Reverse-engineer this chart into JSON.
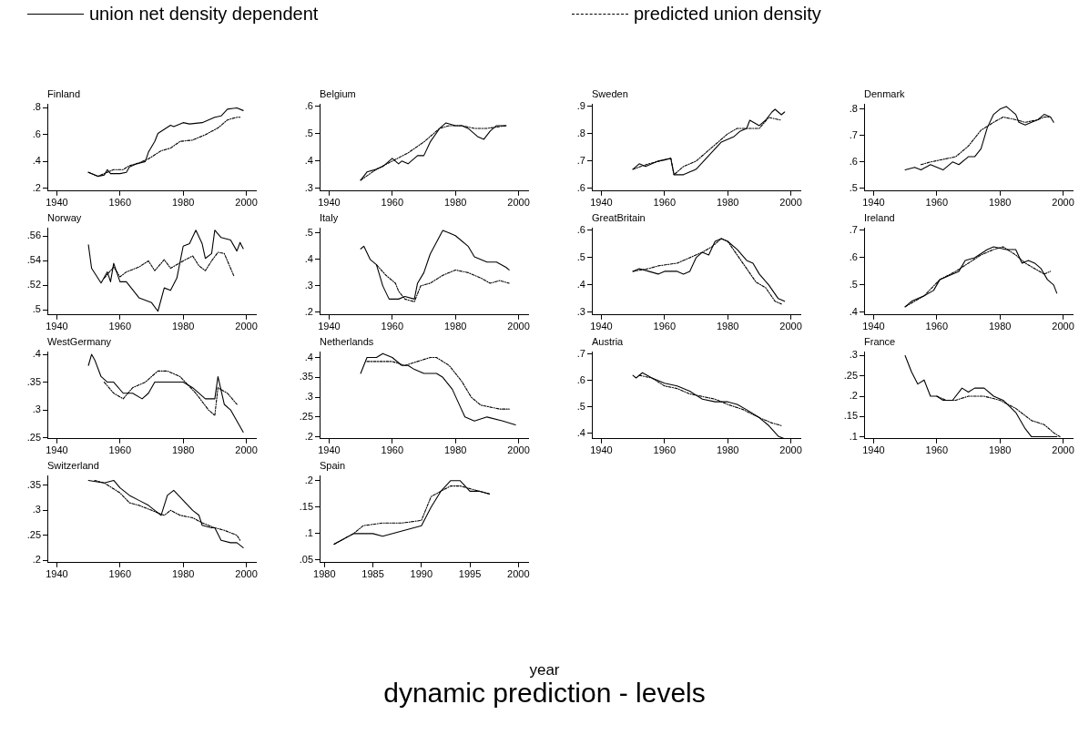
{
  "chart_data": [
    {
      "type": "line",
      "title": "Finland",
      "legend": "top",
      "annotations": [
        "year",
        "dynamic prediction - levels"
      ],
      "xlim": [
        1937,
        2003
      ],
      "xticks": [
        1940,
        1960,
        1980,
        2000
      ],
      "ylim": [
        0.18,
        0.83
      ],
      "yticks": [
        {
          "value": 0.2,
          "label": ".2"
        },
        {
          "value": 0.4,
          "label": ".4"
        },
        {
          "value": 0.6,
          "label": ".6"
        },
        {
          "value": 0.8,
          "label": ".8"
        }
      ],
      "series": [
        {
          "name": "union net density dependent",
          "color": "#000000",
          "line_style": "solid",
          "x": [
            1950,
            1953,
            1955,
            1956,
            1957,
            1960,
            1962,
            1963,
            1965,
            1968,
            1969,
            1971,
            1972,
            1976,
            1977,
            1980,
            1982,
            1986,
            1990,
            1992,
            1994,
            1997,
            1999
          ],
          "values": [
            0.32,
            0.29,
            0.3,
            0.34,
            0.31,
            0.31,
            0.32,
            0.36,
            0.38,
            0.4,
            0.47,
            0.55,
            0.61,
            0.67,
            0.66,
            0.69,
            0.68,
            0.69,
            0.73,
            0.74,
            0.79,
            0.8,
            0.78
          ]
        },
        {
          "name": "predicted union density",
          "color": "#000000",
          "line_style": "dashed",
          "x": [
            1950,
            1953,
            1955,
            1958,
            1961,
            1963,
            1966,
            1969,
            1973,
            1976,
            1979,
            1983,
            1987,
            1991,
            1994,
            1997,
            1998
          ],
          "values": [
            0.32,
            0.29,
            0.31,
            0.34,
            0.34,
            0.37,
            0.39,
            0.42,
            0.48,
            0.5,
            0.55,
            0.56,
            0.6,
            0.65,
            0.71,
            0.73,
            0.73
          ]
        }
      ]
    },
    {
      "type": "line",
      "title": "Belgium",
      "xlim": [
        1937,
        2003
      ],
      "xticks": [
        1940,
        1960,
        1980,
        2000
      ],
      "ylim": [
        0.29,
        0.61
      ],
      "yticks": [
        {
          "value": 0.3,
          "label": ".3"
        },
        {
          "value": 0.4,
          "label": ".4"
        },
        {
          "value": 0.5,
          "label": ".5"
        },
        {
          "value": 0.6,
          "label": ".6"
        }
      ],
      "series": [
        {
          "color": "#000000",
          "line_style": "solid",
          "x": [
            1950,
            1952,
            1955,
            1957,
            1960,
            1962,
            1963,
            1965,
            1968,
            1970,
            1972,
            1975,
            1977,
            1980,
            1982,
            1984,
            1987,
            1989,
            1991,
            1993,
            1996
          ],
          "values": [
            0.33,
            0.36,
            0.37,
            0.38,
            0.41,
            0.39,
            0.4,
            0.39,
            0.42,
            0.42,
            0.47,
            0.52,
            0.54,
            0.53,
            0.53,
            0.52,
            0.49,
            0.48,
            0.51,
            0.53,
            0.53
          ]
        },
        {
          "color": "#000000",
          "line_style": "dashed",
          "x": [
            1950,
            1955,
            1960,
            1965,
            1970,
            1975,
            1978,
            1982,
            1986,
            1990,
            1996
          ],
          "values": [
            0.33,
            0.37,
            0.4,
            0.43,
            0.47,
            0.52,
            0.53,
            0.53,
            0.52,
            0.52,
            0.53
          ]
        }
      ]
    },
    {
      "type": "line",
      "title": "Sweden",
      "xlim": [
        1937,
        2003
      ],
      "xticks": [
        1940,
        1960,
        1980,
        2000
      ],
      "ylim": [
        0.59,
        0.91
      ],
      "yticks": [
        {
          "value": 0.6,
          "label": ".6"
        },
        {
          "value": 0.7,
          "label": ".7"
        },
        {
          "value": 0.8,
          "label": ".8"
        },
        {
          "value": 0.9,
          "label": ".9"
        }
      ],
      "series": [
        {
          "color": "#000000",
          "line_style": "solid",
          "x": [
            1950,
            1952,
            1954,
            1956,
            1958,
            1962,
            1963,
            1966,
            1968,
            1970,
            1974,
            1978,
            1982,
            1984,
            1986,
            1987,
            1990,
            1992,
            1994,
            1995,
            1997,
            1998
          ],
          "values": [
            0.67,
            0.69,
            0.68,
            0.69,
            0.7,
            0.71,
            0.65,
            0.65,
            0.66,
            0.67,
            0.72,
            0.77,
            0.79,
            0.81,
            0.82,
            0.85,
            0.83,
            0.85,
            0.88,
            0.89,
            0.87,
            0.88
          ]
        },
        {
          "color": "#000000",
          "line_style": "dashed",
          "x": [
            1950,
            1955,
            1962,
            1963,
            1966,
            1970,
            1975,
            1980,
            1983,
            1986,
            1990,
            1993,
            1997
          ],
          "values": [
            0.67,
            0.69,
            0.71,
            0.65,
            0.68,
            0.7,
            0.75,
            0.8,
            0.82,
            0.82,
            0.82,
            0.86,
            0.85
          ]
        }
      ]
    },
    {
      "type": "line",
      "title": "Denmark",
      "xlim": [
        1937,
        2003
      ],
      "xticks": [
        1940,
        1960,
        1980,
        2000
      ],
      "ylim": [
        0.49,
        0.82
      ],
      "yticks": [
        {
          "value": 0.5,
          "label": ".5"
        },
        {
          "value": 0.6,
          "label": ".6"
        },
        {
          "value": 0.7,
          "label": ".7"
        },
        {
          "value": 0.8,
          "label": ".8"
        }
      ],
      "series": [
        {
          "color": "#000000",
          "line_style": "solid",
          "x": [
            1950,
            1953,
            1955,
            1958,
            1962,
            1965,
            1967,
            1970,
            1972,
            1974,
            1976,
            1978,
            1980,
            1982,
            1985,
            1986,
            1988,
            1990,
            1992,
            1994,
            1996,
            1997
          ],
          "values": [
            0.57,
            0.58,
            0.57,
            0.59,
            0.57,
            0.6,
            0.59,
            0.62,
            0.62,
            0.65,
            0.73,
            0.78,
            0.8,
            0.81,
            0.78,
            0.75,
            0.74,
            0.75,
            0.76,
            0.78,
            0.77,
            0.75
          ]
        },
        {
          "color": "#000000",
          "line_style": "dashed",
          "x": [
            1955,
            1958,
            1962,
            1966,
            1970,
            1974,
            1978,
            1981,
            1985,
            1988,
            1992,
            1994,
            1996
          ],
          "values": [
            0.59,
            0.6,
            0.61,
            0.62,
            0.66,
            0.72,
            0.75,
            0.77,
            0.76,
            0.75,
            0.76,
            0.77,
            0.77
          ]
        }
      ]
    },
    {
      "type": "line",
      "title": "Norway",
      "xlim": [
        1937,
        2003
      ],
      "xticks": [
        1940,
        1960,
        1980,
        2000
      ],
      "ylim": [
        0.496,
        0.567
      ],
      "yticks": [
        {
          "value": 0.5,
          "label": ".5"
        },
        {
          "value": 0.52,
          "label": ".52"
        },
        {
          "value": 0.54,
          "label": ".54"
        },
        {
          "value": 0.56,
          "label": ".56"
        }
      ],
      "series": [
        {
          "color": "#000000",
          "line_style": "solid",
          "x": [
            1950,
            1951,
            1954,
            1956,
            1957,
            1958,
            1960,
            1962,
            1966,
            1970,
            1972,
            1974,
            1976,
            1978,
            1980,
            1982,
            1984,
            1986,
            1987,
            1989,
            1990,
            1992,
            1995,
            1997,
            1998,
            1999
          ],
          "values": [
            0.553,
            0.534,
            0.522,
            0.531,
            0.523,
            0.538,
            0.523,
            0.523,
            0.51,
            0.506,
            0.499,
            0.518,
            0.516,
            0.526,
            0.552,
            0.554,
            0.565,
            0.554,
            0.542,
            0.546,
            0.565,
            0.559,
            0.557,
            0.548,
            0.555,
            0.55
          ]
        },
        {
          "color": "#000000",
          "line_style": "dashed",
          "x": [
            1955,
            1958,
            1960,
            1962,
            1966,
            1969,
            1971,
            1974,
            1976,
            1980,
            1983,
            1985,
            1987,
            1989,
            1991,
            1993,
            1996
          ],
          "values": [
            0.526,
            0.535,
            0.527,
            0.531,
            0.535,
            0.54,
            0.532,
            0.541,
            0.534,
            0.54,
            0.544,
            0.536,
            0.532,
            0.54,
            0.547,
            0.546,
            0.528
          ]
        }
      ]
    },
    {
      "type": "line",
      "title": "Italy",
      "xlim": [
        1937,
        2003
      ],
      "xticks": [
        1940,
        1960,
        1980,
        2000
      ],
      "ylim": [
        0.19,
        0.52
      ],
      "yticks": [
        {
          "value": 0.2,
          "label": ".2"
        },
        {
          "value": 0.3,
          "label": ".3"
        },
        {
          "value": 0.4,
          "label": ".4"
        },
        {
          "value": 0.5,
          "label": ".5"
        }
      ],
      "series": [
        {
          "color": "#000000",
          "line_style": "solid",
          "x": [
            1950,
            1951,
            1953,
            1955,
            1957,
            1959,
            1962,
            1964,
            1967,
            1968,
            1970,
            1972,
            1976,
            1978,
            1980,
            1984,
            1986,
            1990,
            1993,
            1996,
            1997
          ],
          "values": [
            0.44,
            0.45,
            0.4,
            0.38,
            0.3,
            0.25,
            0.25,
            0.26,
            0.25,
            0.31,
            0.35,
            0.42,
            0.51,
            0.5,
            0.49,
            0.45,
            0.41,
            0.39,
            0.39,
            0.37,
            0.36
          ]
        },
        {
          "color": "#000000",
          "line_style": "dashed",
          "x": [
            1955,
            1958,
            1961,
            1962,
            1964,
            1967,
            1969,
            1972,
            1976,
            1980,
            1984,
            1988,
            1991,
            1994,
            1997
          ],
          "values": [
            0.38,
            0.34,
            0.31,
            0.28,
            0.25,
            0.24,
            0.3,
            0.31,
            0.34,
            0.36,
            0.35,
            0.33,
            0.31,
            0.32,
            0.31
          ]
        }
      ]
    },
    {
      "type": "line",
      "title": "GreatBritain",
      "xlim": [
        1937,
        2003
      ],
      "xticks": [
        1940,
        1960,
        1980,
        2000
      ],
      "ylim": [
        0.29,
        0.61
      ],
      "yticks": [
        {
          "value": 0.3,
          "label": ".3"
        },
        {
          "value": 0.4,
          "label": ".4"
        },
        {
          "value": 0.5,
          "label": ".5"
        },
        {
          "value": 0.6,
          "label": ".6"
        }
      ],
      "series": [
        {
          "color": "#000000",
          "line_style": "solid",
          "x": [
            1950,
            1952,
            1955,
            1958,
            1960,
            1964,
            1966,
            1968,
            1970,
            1972,
            1974,
            1976,
            1978,
            1980,
            1983,
            1986,
            1988,
            1990,
            1993,
            1996,
            1998
          ],
          "values": [
            0.45,
            0.46,
            0.45,
            0.44,
            0.45,
            0.45,
            0.44,
            0.45,
            0.5,
            0.52,
            0.51,
            0.56,
            0.57,
            0.56,
            0.53,
            0.49,
            0.48,
            0.44,
            0.4,
            0.35,
            0.34
          ]
        },
        {
          "color": "#000000",
          "line_style": "dashed",
          "x": [
            1950,
            1955,
            1958,
            1964,
            1968,
            1972,
            1975,
            1978,
            1980,
            1983,
            1986,
            1989,
            1992,
            1995,
            1997
          ],
          "values": [
            0.45,
            0.46,
            0.47,
            0.48,
            0.5,
            0.52,
            0.54,
            0.57,
            0.56,
            0.51,
            0.46,
            0.41,
            0.39,
            0.34,
            0.33
          ]
        }
      ]
    },
    {
      "type": "line",
      "title": "Ireland",
      "xlim": [
        1937,
        2003
      ],
      "xticks": [
        1940,
        1960,
        1980,
        2000
      ],
      "ylim": [
        0.39,
        0.71
      ],
      "yticks": [
        {
          "value": 0.4,
          "label": ".4"
        },
        {
          "value": 0.5,
          "label": ".5"
        },
        {
          "value": 0.6,
          "label": ".6"
        },
        {
          "value": 0.7,
          "label": ".7"
        }
      ],
      "series": [
        {
          "color": "#000000",
          "line_style": "solid",
          "x": [
            1950,
            1952,
            1956,
            1959,
            1961,
            1963,
            1967,
            1969,
            1972,
            1976,
            1978,
            1982,
            1985,
            1987,
            1989,
            1991,
            1993,
            1995,
            1997,
            1998
          ],
          "values": [
            0.42,
            0.44,
            0.46,
            0.48,
            0.52,
            0.53,
            0.55,
            0.59,
            0.6,
            0.63,
            0.64,
            0.63,
            0.63,
            0.58,
            0.59,
            0.58,
            0.56,
            0.52,
            0.5,
            0.47
          ]
        },
        {
          "color": "#000000",
          "line_style": "dashed",
          "x": [
            1950,
            1956,
            1961,
            1966,
            1970,
            1974,
            1978,
            1981,
            1985,
            1988,
            1991,
            1994,
            1996
          ],
          "values": [
            0.42,
            0.46,
            0.52,
            0.55,
            0.58,
            0.61,
            0.63,
            0.64,
            0.61,
            0.58,
            0.56,
            0.54,
            0.55
          ]
        }
      ]
    },
    {
      "type": "line",
      "title": "WestGermany",
      "xlim": [
        1937,
        2003
      ],
      "xticks": [
        1940,
        1960,
        1980,
        2000
      ],
      "ylim": [
        0.248,
        0.405
      ],
      "yticks": [
        {
          "value": 0.25,
          "label": ".25"
        },
        {
          "value": 0.3,
          "label": ".3"
        },
        {
          "value": 0.35,
          "label": ".35"
        },
        {
          "value": 0.4,
          "label": ".4"
        }
      ],
      "series": [
        {
          "color": "#000000",
          "line_style": "solid",
          "x": [
            1950,
            1951,
            1952,
            1954,
            1956,
            1958,
            1961,
            1964,
            1967,
            1969,
            1971,
            1973,
            1976,
            1980,
            1983,
            1987,
            1990,
            1991,
            1993,
            1995,
            1997,
            1999
          ],
          "values": [
            0.38,
            0.4,
            0.39,
            0.36,
            0.35,
            0.35,
            0.33,
            0.33,
            0.32,
            0.33,
            0.35,
            0.35,
            0.35,
            0.35,
            0.34,
            0.32,
            0.32,
            0.36,
            0.31,
            0.3,
            0.28,
            0.26
          ]
        },
        {
          "color": "#000000",
          "line_style": "dashed",
          "x": [
            1955,
            1958,
            1961,
            1964,
            1968,
            1972,
            1975,
            1979,
            1984,
            1988,
            1990,
            1991,
            1994,
            1997
          ],
          "values": [
            0.35,
            0.33,
            0.32,
            0.34,
            0.35,
            0.37,
            0.37,
            0.36,
            0.33,
            0.3,
            0.29,
            0.34,
            0.33,
            0.31
          ]
        }
      ]
    },
    {
      "type": "line",
      "title": "Netherlands",
      "xlim": [
        1937,
        2003
      ],
      "xticks": [
        1940,
        1960,
        1980,
        2000
      ],
      "ylim": [
        0.195,
        0.415
      ],
      "yticks": [
        {
          "value": 0.2,
          "label": ".2"
        },
        {
          "value": 0.25,
          "label": ".25"
        },
        {
          "value": 0.3,
          "label": ".3"
        },
        {
          "value": 0.35,
          "label": ".35"
        },
        {
          "value": 0.4,
          "label": ".4"
        }
      ],
      "series": [
        {
          "color": "#000000",
          "line_style": "solid",
          "x": [
            1950,
            1952,
            1955,
            1957,
            1960,
            1963,
            1965,
            1967,
            1970,
            1974,
            1976,
            1979,
            1983,
            1986,
            1990,
            1995,
            1999
          ],
          "values": [
            0.36,
            0.4,
            0.4,
            0.41,
            0.4,
            0.38,
            0.38,
            0.37,
            0.36,
            0.36,
            0.35,
            0.32,
            0.25,
            0.24,
            0.25,
            0.24,
            0.23
          ]
        },
        {
          "color": "#000000",
          "line_style": "dashed",
          "x": [
            1952,
            1956,
            1960,
            1964,
            1968,
            1972,
            1974,
            1978,
            1982,
            1985,
            1988,
            1994,
            1997
          ],
          "values": [
            0.39,
            0.39,
            0.39,
            0.38,
            0.39,
            0.4,
            0.4,
            0.38,
            0.34,
            0.3,
            0.28,
            0.27,
            0.27
          ]
        }
      ]
    },
    {
      "type": "line",
      "title": "Austria",
      "xlim": [
        1937,
        2003
      ],
      "xticks": [
        1940,
        1960,
        1980,
        2000
      ],
      "ylim": [
        0.38,
        0.71
      ],
      "yticks": [
        {
          "value": 0.4,
          "label": ".4"
        },
        {
          "value": 0.5,
          "label": ".5"
        },
        {
          "value": 0.6,
          "label": ".6"
        },
        {
          "value": 0.7,
          "label": ".7"
        }
      ],
      "series": [
        {
          "color": "#000000",
          "line_style": "solid",
          "x": [
            1950,
            1951,
            1953,
            1956,
            1960,
            1964,
            1968,
            1972,
            1976,
            1980,
            1983,
            1986,
            1990,
            1993,
            1996,
            1998
          ],
          "values": [
            0.62,
            0.61,
            0.63,
            0.61,
            0.59,
            0.58,
            0.56,
            0.53,
            0.52,
            0.52,
            0.51,
            0.49,
            0.46,
            0.43,
            0.39,
            0.38
          ]
        },
        {
          "color": "#000000",
          "line_style": "dashed",
          "x": [
            1952,
            1956,
            1960,
            1964,
            1968,
            1972,
            1976,
            1980,
            1985,
            1990,
            1994,
            1997
          ],
          "values": [
            0.62,
            0.61,
            0.58,
            0.57,
            0.55,
            0.54,
            0.53,
            0.51,
            0.49,
            0.46,
            0.44,
            0.43
          ]
        }
      ]
    },
    {
      "type": "line",
      "title": "France",
      "xlim": [
        1937,
        2003
      ],
      "xticks": [
        1940,
        1960,
        1980,
        2000
      ],
      "ylim": [
        0.095,
        0.31
      ],
      "yticks": [
        {
          "value": 0.1,
          "label": ".1"
        },
        {
          "value": 0.15,
          "label": ".15"
        },
        {
          "value": 0.2,
          "label": ".2"
        },
        {
          "value": 0.25,
          "label": ".25"
        },
        {
          "value": 0.3,
          "label": ".3"
        }
      ],
      "series": [
        {
          "color": "#000000",
          "line_style": "solid",
          "x": [
            1950,
            1952,
            1954,
            1956,
            1958,
            1960,
            1962,
            1965,
            1968,
            1970,
            1972,
            1975,
            1978,
            1981,
            1985,
            1988,
            1990,
            1994,
            1998
          ],
          "values": [
            0.3,
            0.26,
            0.23,
            0.24,
            0.2,
            0.2,
            0.19,
            0.19,
            0.22,
            0.21,
            0.22,
            0.22,
            0.2,
            0.19,
            0.16,
            0.12,
            0.1,
            0.1,
            0.1
          ]
        },
        {
          "color": "#000000",
          "line_style": "dashed",
          "x": [
            1960,
            1963,
            1966,
            1970,
            1975,
            1980,
            1985,
            1990,
            1994,
            1997,
            1999
          ],
          "values": [
            0.2,
            0.19,
            0.19,
            0.2,
            0.2,
            0.19,
            0.17,
            0.14,
            0.13,
            0.11,
            0.1
          ]
        }
      ]
    },
    {
      "type": "line",
      "title": "Switzerland",
      "xlim": [
        1937,
        2003
      ],
      "xticks": [
        1940,
        1960,
        1980,
        2000
      ],
      "ylim": [
        0.195,
        0.37
      ],
      "yticks": [
        {
          "value": 0.2,
          "label": ".2"
        },
        {
          "value": 0.25,
          "label": ".25"
        },
        {
          "value": 0.3,
          "label": ".3"
        },
        {
          "value": 0.35,
          "label": ".35"
        }
      ],
      "series": [
        {
          "color": "#000000",
          "line_style": "solid",
          "x": [
            1950,
            1955,
            1958,
            1960,
            1963,
            1966,
            1969,
            1971,
            1973,
            1975,
            1977,
            1980,
            1983,
            1985,
            1986,
            1989,
            1990,
            1992,
            1995,
            1997,
            1999
          ],
          "values": [
            0.36,
            0.355,
            0.36,
            0.345,
            0.33,
            0.32,
            0.31,
            0.3,
            0.29,
            0.33,
            0.34,
            0.32,
            0.3,
            0.29,
            0.27,
            0.265,
            0.265,
            0.24,
            0.235,
            0.235,
            0.225
          ]
        },
        {
          "color": "#000000",
          "line_style": "dashed",
          "x": [
            1952,
            1955,
            1960,
            1963,
            1966,
            1970,
            1974,
            1976,
            1979,
            1983,
            1986,
            1990,
            1993,
            1997,
            1998
          ],
          "values": [
            0.36,
            0.355,
            0.335,
            0.315,
            0.31,
            0.3,
            0.29,
            0.3,
            0.29,
            0.285,
            0.275,
            0.265,
            0.26,
            0.25,
            0.24
          ]
        }
      ]
    },
    {
      "type": "line",
      "title": "Spain",
      "xlim": [
        1979.5,
        2001
      ],
      "xticks": [
        1980,
        1985,
        1990,
        1995,
        2000
      ],
      "ylim": [
        0.045,
        0.21
      ],
      "yticks": [
        {
          "value": 0.05,
          "label": ".05"
        },
        {
          "value": 0.1,
          "label": ".1"
        },
        {
          "value": 0.15,
          "label": ".15"
        },
        {
          "value": 0.2,
          "label": ".2"
        }
      ],
      "series": [
        {
          "color": "#000000",
          "line_style": "solid",
          "x": [
            1981,
            1983,
            1985,
            1986,
            1988,
            1990,
            1991,
            1992,
            1993,
            1994,
            1995,
            1996,
            1997
          ],
          "values": [
            0.08,
            0.1,
            0.1,
            0.095,
            0.105,
            0.115,
            0.15,
            0.18,
            0.2,
            0.2,
            0.18,
            0.18,
            0.175
          ]
        },
        {
          "color": "#000000",
          "line_style": "dashed",
          "x": [
            1981,
            1983,
            1984,
            1986,
            1988,
            1990,
            1991,
            1993,
            1994,
            1995,
            1997
          ],
          "values": [
            0.08,
            0.1,
            0.115,
            0.12,
            0.12,
            0.125,
            0.17,
            0.19,
            0.19,
            0.185,
            0.175
          ]
        }
      ]
    }
  ]
}
